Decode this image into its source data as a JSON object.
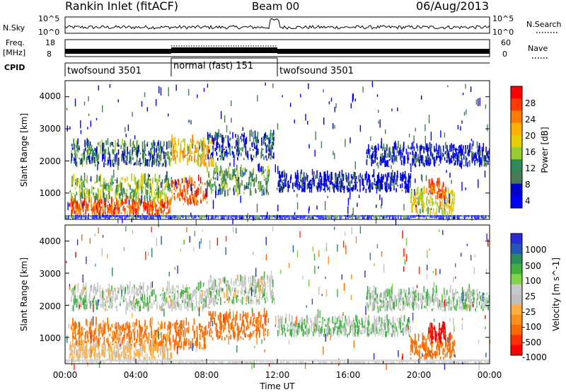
{
  "header": {
    "station": "Rankin Inlet (fitACF)",
    "beam": "Beam 00",
    "date": "06/Aug/2013"
  },
  "noise_panel": {
    "left_label": "N.Sky",
    "left_ticks": [
      "10^5",
      "10^0"
    ],
    "right_ticks": [
      "10^5",
      "10^0"
    ],
    "right_label": "N.Search"
  },
  "freq_panel": {
    "left_label_1": "Freq.",
    "left_label_2": "[MHz]",
    "left_ticks": [
      "18",
      "8"
    ],
    "right_ticks": [
      "60",
      "0"
    ],
    "right_label": "Nave"
  },
  "cpid_panel": {
    "label": "CPID",
    "segments": [
      {
        "name": "twofsound 3501",
        "start_hour": 0,
        "end_hour": 6
      },
      {
        "name": "normal (fast) 151",
        "start_hour": 6,
        "end_hour": 12
      },
      {
        "name": "twofsound 3501",
        "start_hour": 12,
        "end_hour": 24
      }
    ]
  },
  "power_panel": {
    "ylabel": "Slant Range [km]",
    "yticks": [
      "4000",
      "3000",
      "2000",
      "1000"
    ],
    "colorbar_label": "Power [dB]",
    "colorbar_ticks": [
      "28",
      "24",
      "20",
      "16",
      "12",
      "8",
      "4"
    ],
    "colorbar_colors": [
      "#ff0000",
      "#ff3a00",
      "#ff7a00",
      "#ffb000",
      "#e7cc00",
      "#9acd32",
      "#2e8b57",
      "#4a7a55",
      "#0000cd",
      "#0000ff"
    ]
  },
  "velocity_panel": {
    "ylabel": "Slant Range [km]",
    "yticks": [
      "4000",
      "3000",
      "2000",
      "1000"
    ],
    "colorbar_label": "Velocity [m s^-1]",
    "colorbar_ticks": [
      "1000",
      "500",
      "100",
      "25",
      "-25",
      "-100",
      "-500",
      "-1000"
    ],
    "colorbar_colors": [
      "#2b2bd6",
      "#2457b5",
      "#2b8c5a",
      "#3fb040",
      "#7fd44a",
      "#c8c8c8",
      "#bfbfbf",
      "#ffb040",
      "#ff9020",
      "#ff6a00",
      "#ff3000",
      "#ff0000"
    ]
  },
  "x_axis": {
    "ticks": [
      "00:00",
      "04:00",
      "08:00",
      "12:00",
      "16:00",
      "20:00",
      "00:00"
    ],
    "label": "Time UT"
  },
  "chart_data": {
    "type": "heatmap",
    "title": "Rankin Inlet (fitACF)",
    "subtitle": "Beam 00",
    "xlabel": "Time UT",
    "ylabel": "Slant Range [km]",
    "x_range_hours": [
      0,
      24
    ],
    "y_range_km": [
      180,
      4500
    ],
    "power_colorbar_range_db": [
      0,
      30
    ],
    "velocity_colorbar_range_ms": [
      -1000,
      1000
    ],
    "echo_regions": [
      {
        "t0": 0.2,
        "t1": 6.0,
        "r0": 250,
        "r1": 700,
        "power": 26,
        "velocity": -40
      },
      {
        "t0": 0.3,
        "t1": 6.0,
        "r0": 700,
        "r1": 1400,
        "power": 14,
        "velocity": -120
      },
      {
        "t0": 0.3,
        "t1": 6.0,
        "r0": 1800,
        "r1": 2500,
        "power": 10,
        "velocity": 10
      },
      {
        "t0": 6.0,
        "t1": 8.0,
        "r0": 600,
        "r1": 1400,
        "power": 26,
        "velocity": -250
      },
      {
        "t0": 6.0,
        "t1": 8.5,
        "r0": 1800,
        "r1": 2600,
        "power": 20,
        "velocity": 10
      },
      {
        "t0": 8.0,
        "t1": 11.5,
        "r0": 900,
        "r1": 1700,
        "power": 12,
        "velocity": -200
      },
      {
        "t0": 8.0,
        "t1": 11.8,
        "r0": 2000,
        "r1": 2800,
        "power": 8,
        "velocity": 10
      },
      {
        "t0": 12.0,
        "t1": 19.5,
        "r0": 1000,
        "r1": 1500,
        "power": 5,
        "velocity": 20
      },
      {
        "t0": 19.5,
        "t1": 22.0,
        "r0": 300,
        "r1": 1000,
        "power": 18,
        "velocity": -400
      },
      {
        "t0": 20.5,
        "t1": 21.5,
        "r0": 800,
        "r1": 1300,
        "power": 26,
        "velocity": -900
      },
      {
        "t0": 17.0,
        "t1": 24.0,
        "r0": 1800,
        "r1": 2400,
        "power": 6,
        "velocity": 15
      }
    ]
  }
}
